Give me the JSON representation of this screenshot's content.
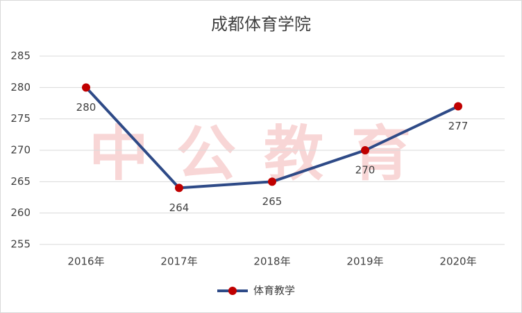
{
  "chart_data": {
    "type": "line",
    "title": "成都体育学院",
    "watermark": "中公教育",
    "categories": [
      "2016年",
      "2017年",
      "2018年",
      "2019年",
      "2020年"
    ],
    "series": [
      {
        "name": "体育教学",
        "color": "#2E4A87",
        "marker_color": "#C00000",
        "values": [
          280,
          264,
          265,
          270,
          277
        ]
      }
    ],
    "ylim": [
      255,
      285
    ],
    "yticks": [
      255,
      260,
      265,
      270,
      275,
      280,
      285
    ],
    "grid": true,
    "legend": "bottom"
  }
}
